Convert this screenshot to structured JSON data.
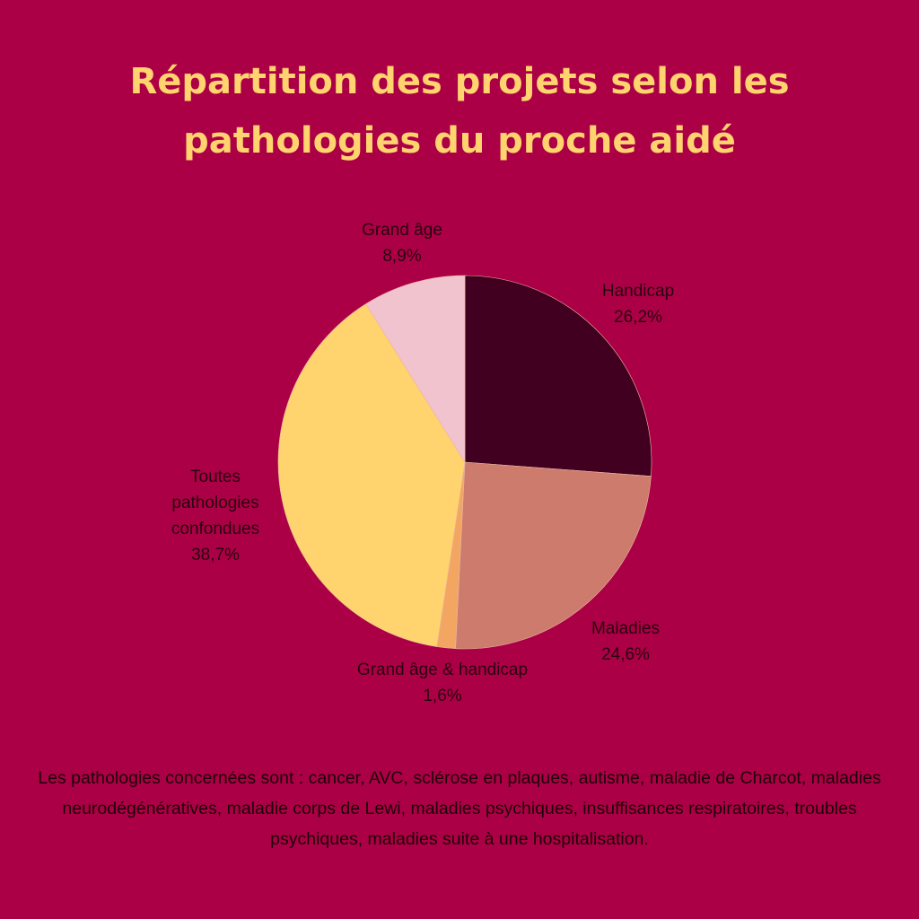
{
  "title_lines": [
    "Répartition des projets selon les",
    "pathologies du proche aidé"
  ],
  "footnote": "Les pathologies concernées sont : cancer, AVC, sclérose en plaques, autisme, maladie de Charcot, maladies neurodégénératives, maladie corps de Lewi, maladies psychiques, insuffisances respiratoires, troubles psychiques, maladies suite à une hospitalisation.",
  "colors": {
    "background": "#ab0045",
    "title": "#ffd36e"
  },
  "chart_data": {
    "type": "pie",
    "start": "12 o'clock, clockwise",
    "slices": [
      {
        "label": "Handicap",
        "value": 26.2,
        "display": "26,2%",
        "color": "#420020"
      },
      {
        "label": "Maladies",
        "value": 24.6,
        "display": "24,6%",
        "color": "#cd7b6c"
      },
      {
        "label": "Grand âge & handicap",
        "value": 1.6,
        "display": "1,6%",
        "color": "#f3a661"
      },
      {
        "label": "Toutes pathologies confondues",
        "value": 38.7,
        "display": "38,7%",
        "color": "#ffd36e"
      },
      {
        "label": "Grand âge",
        "value": 8.9,
        "display": "8,9%",
        "color": "#f0c3cf"
      }
    ]
  }
}
